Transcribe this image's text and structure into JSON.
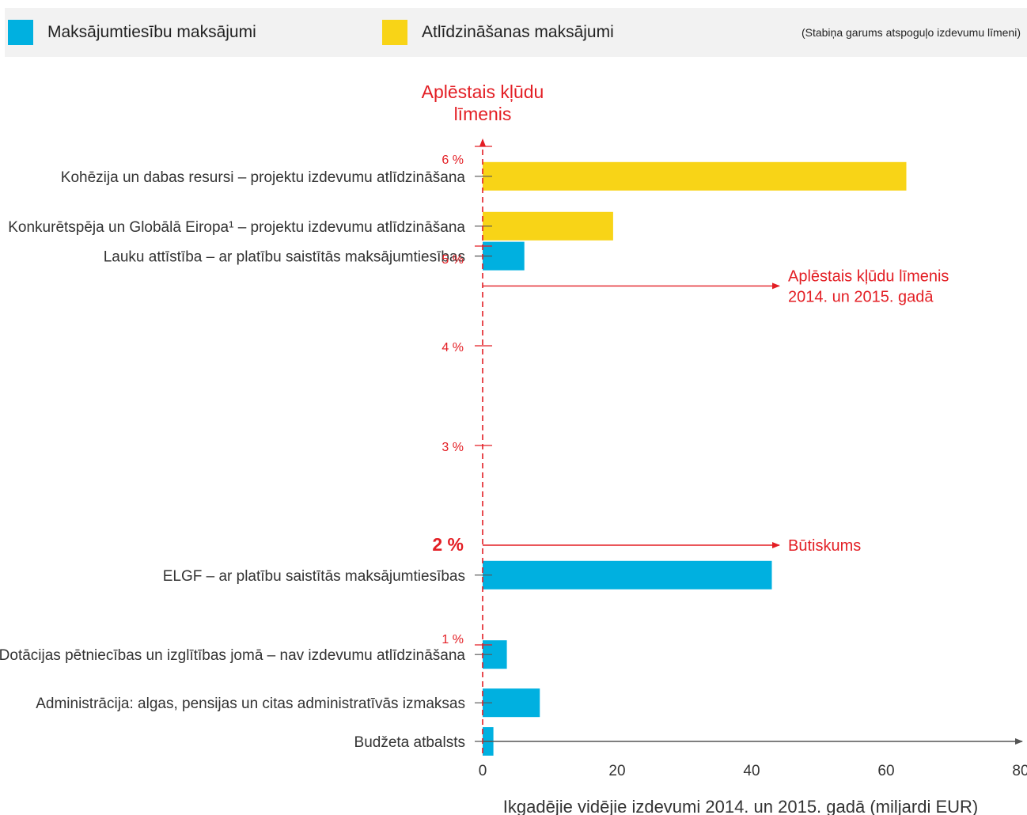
{
  "legend": {
    "items": [
      {
        "label": "Maksājumtiesību maksājumi",
        "color": "#00b0e0"
      },
      {
        "label": "Atlīdzināšanas maksājumi",
        "color": "#f8d417"
      }
    ],
    "note": "(Stabiņa garums atspoguļo izdevumu līmeni)"
  },
  "chart_data": {
    "type": "bar",
    "orientation": "horizontal",
    "categories": [
      "Kohēzija un dabas resursi – projektu izdevumu atlīdzināšana",
      "Konkurētspēja un Globālā Eiropa¹ – projektu izdevumu atlīdzināšana",
      "Lauku attīstība – ar platību saistītās maksājumtiesības",
      "ELGF – ar platību saistītās maksājumtiesības",
      "Dotācijas pētniecības un izglītības jomā – nav izdevumu atlīdzināšana",
      "Administrācija: algas, pensijas un citas administratīvās izmaksas",
      "Budžeta atbalsts"
    ],
    "spending": [
      63,
      19.4,
      6.2,
      43,
      3.6,
      8.5,
      1.6
    ],
    "error_rate": [
      5.7,
      5.2,
      4.9,
      1.7,
      0.9,
      0.4,
      0.0
    ],
    "payment_type": [
      "reimbursement",
      "reimbursement",
      "entitlement",
      "entitlement",
      "entitlement",
      "entitlement",
      "entitlement"
    ],
    "colors": {
      "entitlement": "#00b0e0",
      "reimbursement": "#f8d417",
      "error_axis": "#e31e24",
      "axis": "#555555",
      "text": "#333333"
    },
    "xlabel": "Ikgadējie vidējie izdevumi 2014. un 2015. gadā (miljardi EUR)",
    "xlim": [
      0,
      80
    ],
    "xticks": [
      "0",
      "20",
      "40",
      "60",
      "80"
    ],
    "ylabel": "Aplēstais kļūdu līmenis",
    "ylim": [
      0,
      6
    ],
    "yticks": [
      {
        "value": 1,
        "label": "1 %"
      },
      {
        "value": 2,
        "label": "2 %",
        "bold": true
      },
      {
        "value": 3,
        "label": "3 %"
      },
      {
        "value": 4,
        "label": "4 %"
      },
      {
        "value": 5,
        "label": "5 %"
      },
      {
        "value": 6,
        "label": "6 %"
      }
    ],
    "annotations": [
      {
        "at_error_rate": 4.6,
        "line1": "Aplēstais kļūdu līmenis",
        "line2": "2014. un 2015. gadā"
      },
      {
        "at_error_rate": 2.0,
        "line1": "Būtiskums",
        "line2": ""
      }
    ]
  }
}
